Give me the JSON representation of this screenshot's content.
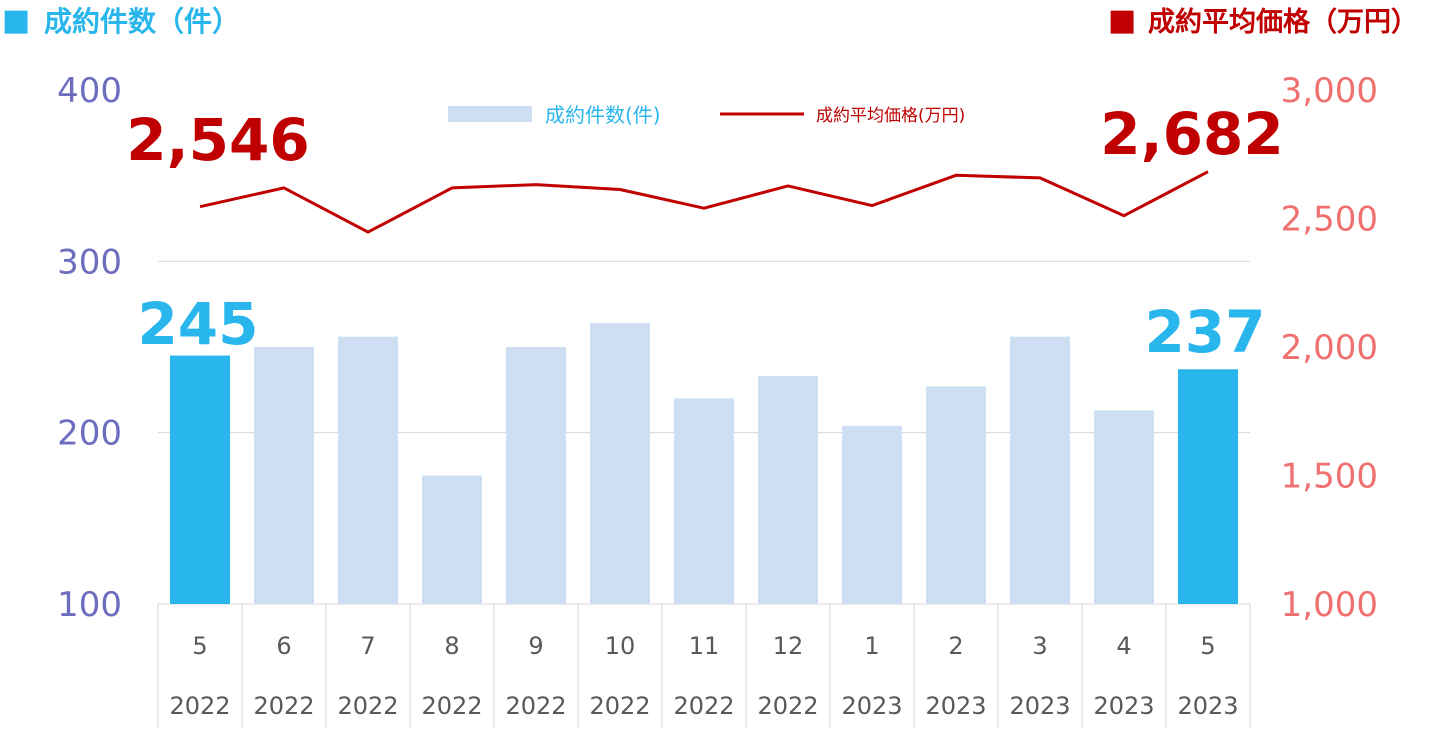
{
  "header": {
    "left_square": "■",
    "left_label": "成約件数（件）",
    "right_square": "■",
    "right_label": "成約平均価格（万円）"
  },
  "colors": {
    "bar_light": "#cfdff3",
    "bar_highlight": "#29b6ec",
    "line": "#c00000",
    "left_axis": "#6d6dc0",
    "right_axis": "#f07070",
    "grid": "#d9d9d9",
    "category_text": "#595959"
  },
  "chart_data": {
    "type": "bar",
    "categories": [
      "5",
      "6",
      "7",
      "8",
      "9",
      "10",
      "11",
      "12",
      "1",
      "2",
      "3",
      "4",
      "5"
    ],
    "years": [
      "2022",
      "2022",
      "2022",
      "2022",
      "2022",
      "2022",
      "2022",
      "2022",
      "2023",
      "2023",
      "2023",
      "2023",
      "2023"
    ],
    "series": [
      {
        "name": "成約件数(件)",
        "axis": "left",
        "values": [
          245,
          250,
          256,
          175,
          250,
          264,
          220,
          233,
          204,
          227,
          256,
          213,
          237
        ],
        "highlight": [
          true,
          false,
          false,
          false,
          false,
          false,
          false,
          false,
          false,
          false,
          false,
          false,
          true
        ]
      },
      {
        "name": "成約平均価格(万円)",
        "type": "line",
        "axis": "right",
        "values": [
          2546,
          2619,
          2447,
          2619,
          2632,
          2613,
          2540,
          2627,
          2550,
          2668,
          2658,
          2511,
          2682
        ]
      }
    ],
    "left_axis": {
      "ylim": [
        100,
        400
      ],
      "ticks": [
        "100",
        "200",
        "300",
        "400"
      ]
    },
    "right_axis": {
      "ylim": [
        1000,
        3000
      ],
      "ticks": [
        "1,000",
        "1,500",
        "2,000",
        "2,500",
        "3,000"
      ]
    },
    "legend": {
      "position": "top-center",
      "bar_label": "成約件数(件)",
      "line_label": "成約平均価格(万円)"
    },
    "annotations": {
      "price_first": "2,546",
      "price_last": "2,682",
      "count_first": "245",
      "count_last": "237"
    },
    "grid": true
  }
}
